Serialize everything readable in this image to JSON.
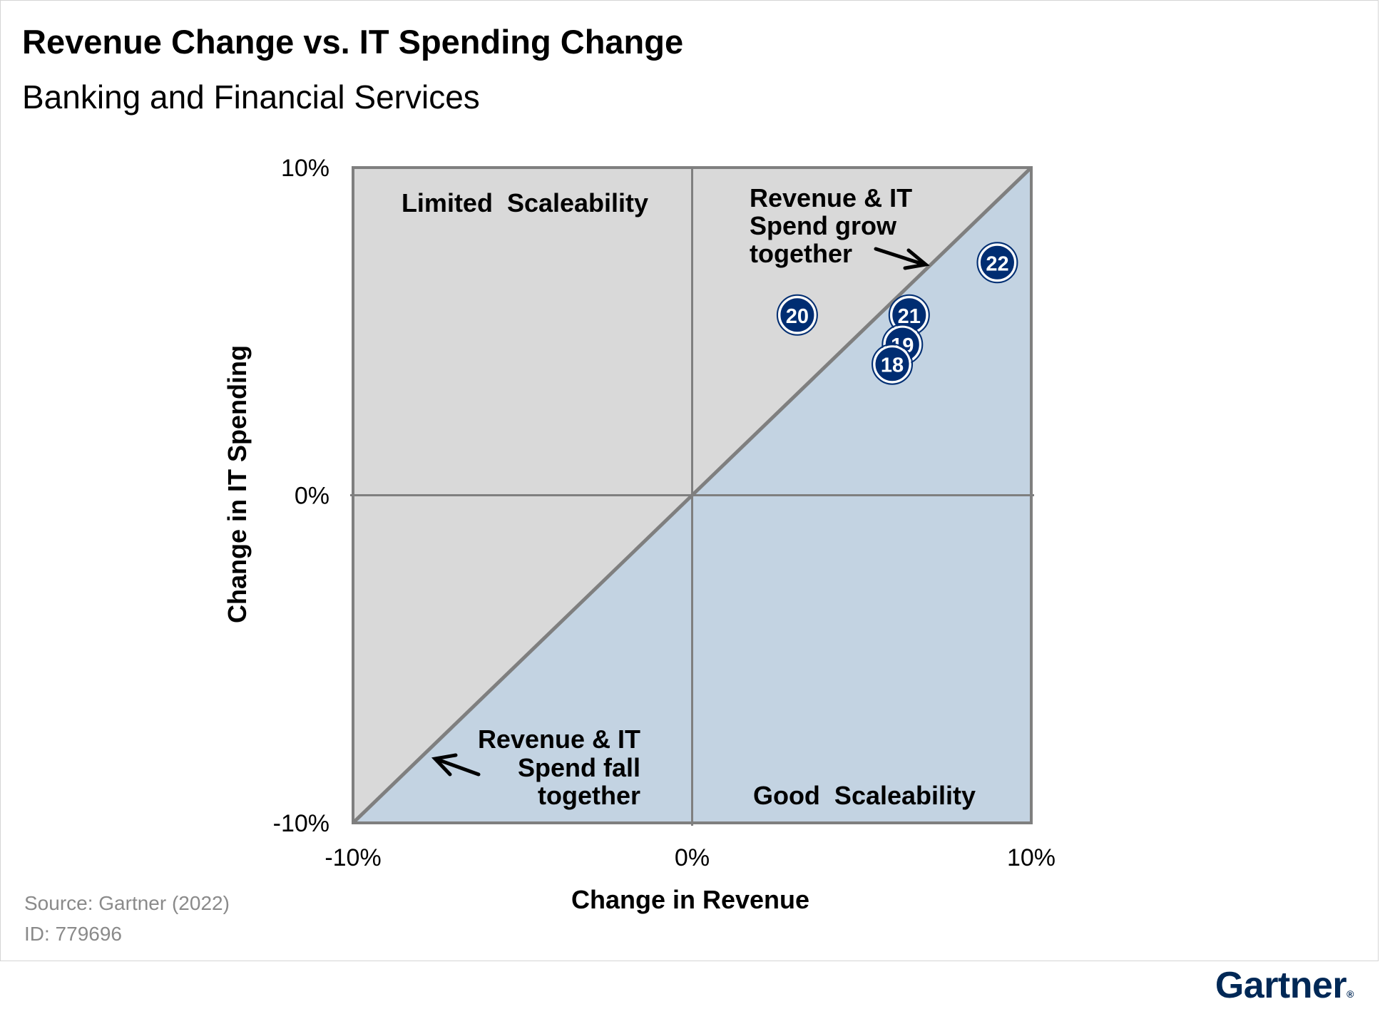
{
  "header": {
    "title": "Revenue Change vs. IT Spending Change",
    "subtitle": "Banking and Financial Services"
  },
  "footer": {
    "source": "Source: Gartner (2022)",
    "id": "ID: 779696",
    "logo": "Gartner",
    "logo_mark": "®"
  },
  "colors": {
    "upper_region": "#d9d9d9",
    "lower_region": "#c3d3e2",
    "axis_lines": "#7f7f7f",
    "point_fill": "#002d72",
    "point_text": "#ffffff",
    "brand": "#002856"
  },
  "chart_data": {
    "type": "scatter",
    "title": "Revenue Change vs. IT Spending Change",
    "subtitle": "Banking and Financial Services",
    "xlabel": "Change in Revenue",
    "ylabel": "Change in IT Spending",
    "xlim": [
      -10,
      10
    ],
    "ylim": [
      -10,
      10
    ],
    "x_ticks": [
      {
        "value": -10,
        "label": "-10%"
      },
      {
        "value": 0,
        "label": "0%"
      },
      {
        "value": 10,
        "label": "10%"
      }
    ],
    "y_ticks": [
      {
        "value": 10,
        "label": "10%"
      },
      {
        "value": 0,
        "label": "0%"
      },
      {
        "value": -10,
        "label": "-10%"
      }
    ],
    "points": [
      {
        "label": "22",
        "x": 9.0,
        "y": 7.1
      },
      {
        "label": "20",
        "x": 3.1,
        "y": 5.5
      },
      {
        "label": "21",
        "x": 6.4,
        "y": 5.5
      },
      {
        "label": "19",
        "x": 6.2,
        "y": 4.6
      },
      {
        "label": "18",
        "x": 5.9,
        "y": 4.0
      }
    ],
    "region_labels": {
      "upper_left": "Limited  Scaleability",
      "lower_right": "Good  Scaleability"
    },
    "annotations": {
      "grow": [
        "Revenue & IT",
        "Spend grow",
        "together"
      ],
      "fall": [
        "Revenue & IT",
        "Spend fall",
        "together"
      ]
    }
  }
}
